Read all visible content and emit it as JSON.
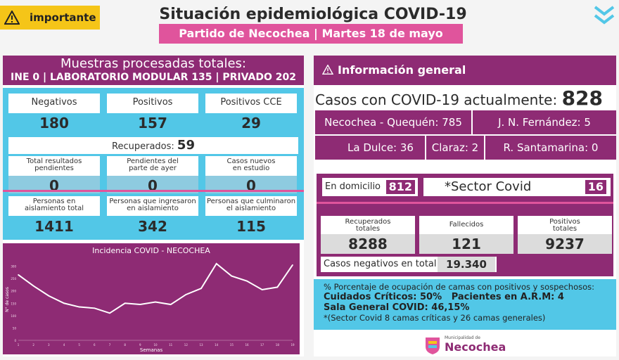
{
  "badge": {
    "label": "importante"
  },
  "header": {
    "title": "Situación epidemiológica COVID-19",
    "subtitle": "Partido de Necochea | Martes 18 de mayo"
  },
  "left": {
    "title_line1": "Muestras procesadas totales:",
    "title_line2": "INE 0 | LABORATORIO MODULAR 135 | PRIVADO 202",
    "row1": [
      {
        "label": "Negativos",
        "value": "180"
      },
      {
        "label": "Positivos",
        "value": "157"
      },
      {
        "label": "Positivos CCE",
        "value": "29"
      }
    ],
    "recuperados_label": "Recuperados:",
    "recuperados_value": "59",
    "row2": [
      {
        "label1": "Total resultados",
        "label2": "pendientes",
        "value": "0"
      },
      {
        "label1": "Pendientes del",
        "label2": "parte de ayer",
        "value": "0"
      },
      {
        "label1": "Casos nuevos",
        "label2": "en estudio",
        "value": "0"
      }
    ],
    "row3": [
      {
        "label1": "Personas en",
        "label2": "aislamiento total",
        "value": "1411"
      },
      {
        "label1": "Personas que ingresaron",
        "label2": "en aislamiento",
        "value": "342"
      },
      {
        "label1": "Personas que culminaron",
        "label2": "el aislamiento",
        "value": "115"
      }
    ]
  },
  "chart_data": {
    "type": "line",
    "title": "Incidencia COVID - NECOCHEA",
    "xlabel": "Semanas",
    "ylabel": "N° de casos",
    "x": [
      1,
      2,
      3,
      4,
      5,
      6,
      7,
      8,
      9,
      10,
      11,
      12,
      13,
      14,
      15,
      16,
      17,
      18,
      19
    ],
    "series": [
      {
        "values": [
          265,
          220,
          180,
          150,
          135,
          130,
          110,
          150,
          145,
          155,
          145,
          185,
          210,
          310,
          260,
          240,
          205,
          215,
          305
        ]
      }
    ],
    "ylim": [
      0,
      330
    ],
    "color": "#ffffff"
  },
  "right": {
    "title": "Información general",
    "casos_label": "Casos con COVID-19 actualmente:",
    "casos_value": "828",
    "loc_row1": [
      {
        "text": "Necochea - Quequén: 785"
      },
      {
        "text": "J. N. Fernández: 5"
      }
    ],
    "loc_row2": [
      {
        "text": "La Dulce: 36"
      },
      {
        "text": "Claraz: 2"
      },
      {
        "text": "R. Santamarina: 0"
      }
    ],
    "domicilio_label": "En domicilio",
    "domicilio_value": "812",
    "sector_label": "*Sector Covid",
    "sector_value": "16",
    "cards": [
      {
        "label1": "Recuperados",
        "label2": "totales",
        "value": "8288"
      },
      {
        "label1": "Fallecidos",
        "label2": "",
        "value": "121"
      },
      {
        "label1": "Positivos",
        "label2": "totales",
        "value": "9237"
      }
    ],
    "negativos_label": "Casos negativos en total",
    "negativos_value": "19.340",
    "info_line1": "% Porcentaje de ocupación de camas con positivos y sospechosos:",
    "info_line2": "Cuidados Críticos: 50%   Pacientes en A.R.M: 4",
    "info_line3": "Sala General COVID: 46,15%",
    "info_line4": "*(Sector Covid 8 camas críticas y  26 camas generales)",
    "logo_small": "Municipalidad de",
    "logo_big": "Necochea"
  },
  "colors": {
    "magenta": "#8e2b74",
    "pink": "#e0549c",
    "cyan": "#52c7e7",
    "yellow": "#f5c518"
  }
}
